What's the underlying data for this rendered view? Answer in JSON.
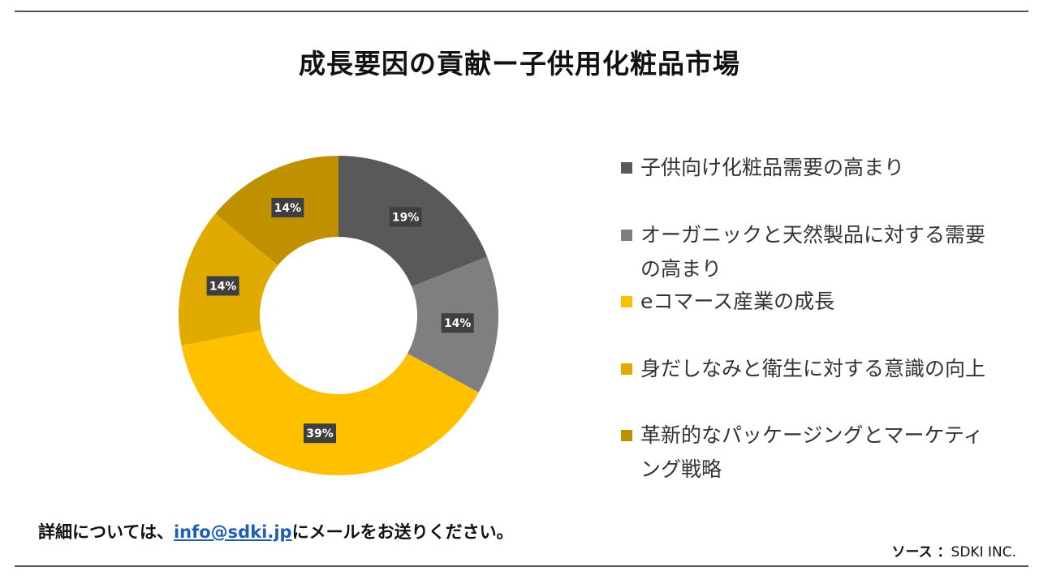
{
  "title": "成長要因の貢献ー子供用化粧品市場",
  "chart_data": {
    "type": "pie",
    "donut": true,
    "labels": [
      "子供向け化粧品需要の高まり",
      "オーガニックと天然製品に対する需要の高まり",
      "eコマース産業の成長",
      "身だしなみと衛生に対する意識の向上",
      "革新的なパッケージングとマーケティング戦略"
    ],
    "values": [
      19,
      14,
      39,
      14,
      14
    ],
    "value_labels": [
      "19%",
      "14%",
      "39%",
      "14%",
      "14%"
    ],
    "colors": [
      "#595959",
      "#7f7f7f",
      "#ffc000",
      "#e0aa00",
      "#bf9000"
    ],
    "legend_position": "right"
  },
  "footer": {
    "prefix": "詳細については、",
    "email": "info@sdki.jp",
    "suffix": "にメールをお送りください。"
  },
  "source": {
    "label": "ソース ：",
    "value": "SDKI INC."
  }
}
